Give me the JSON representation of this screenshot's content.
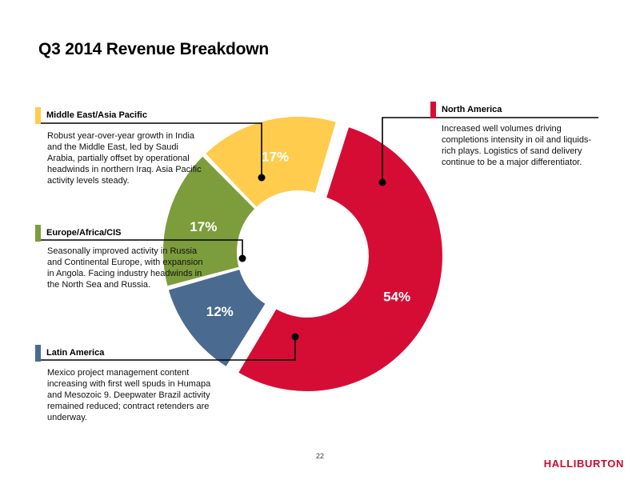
{
  "title": "Q3 2014 Revenue Breakdown",
  "regions": {
    "middle_east": {
      "name": "Middle East/Asia Pacific",
      "color": "#ffcc4d",
      "description": "Robust year-over-year growth in India and the Middle East, led by Saudi Arabia, partially offset by operational headwinds in northern Iraq. Asia Pacific activity levels steady."
    },
    "europe": {
      "name": "Europe/Africa/CIS",
      "color": "#7d9c3c",
      "description": "Seasonally improved activity in Russia and Continental Europe, with expansion in Angola. Facing industry headwinds in the North Sea and Russia."
    },
    "latin_america": {
      "name": "Latin America",
      "color": "#4a6b8f",
      "description": "Mexico project management content increasing with first well spuds in Humapa and Mesozoic 9. Deepwater Brazil activity remained reduced; contract retenders are underway."
    },
    "north_america": {
      "name": "North America",
      "color": "#d50d35",
      "description": "Increased well volumes driving completions intensity in oil and liquids-rich plays. Logistics of sand delivery continue to be a major differentiator."
    }
  },
  "chart_data": {
    "type": "pie",
    "variant": "donut",
    "categories": [
      "North America",
      "Latin America",
      "Europe/Africa/CIS",
      "Middle East/Asia Pacific"
    ],
    "values": [
      54,
      12,
      17,
      17
    ],
    "labels": [
      "54%",
      "12%",
      "17%",
      "17%"
    ],
    "colors": [
      "#d50d35",
      "#4a6b8f",
      "#7d9c3c",
      "#ffcc4d"
    ],
    "exploded": [
      "North America"
    ],
    "title": "Q3 2014 Revenue Breakdown"
  },
  "footer": {
    "page_number": "22",
    "logo": "HALLIBURTON"
  }
}
